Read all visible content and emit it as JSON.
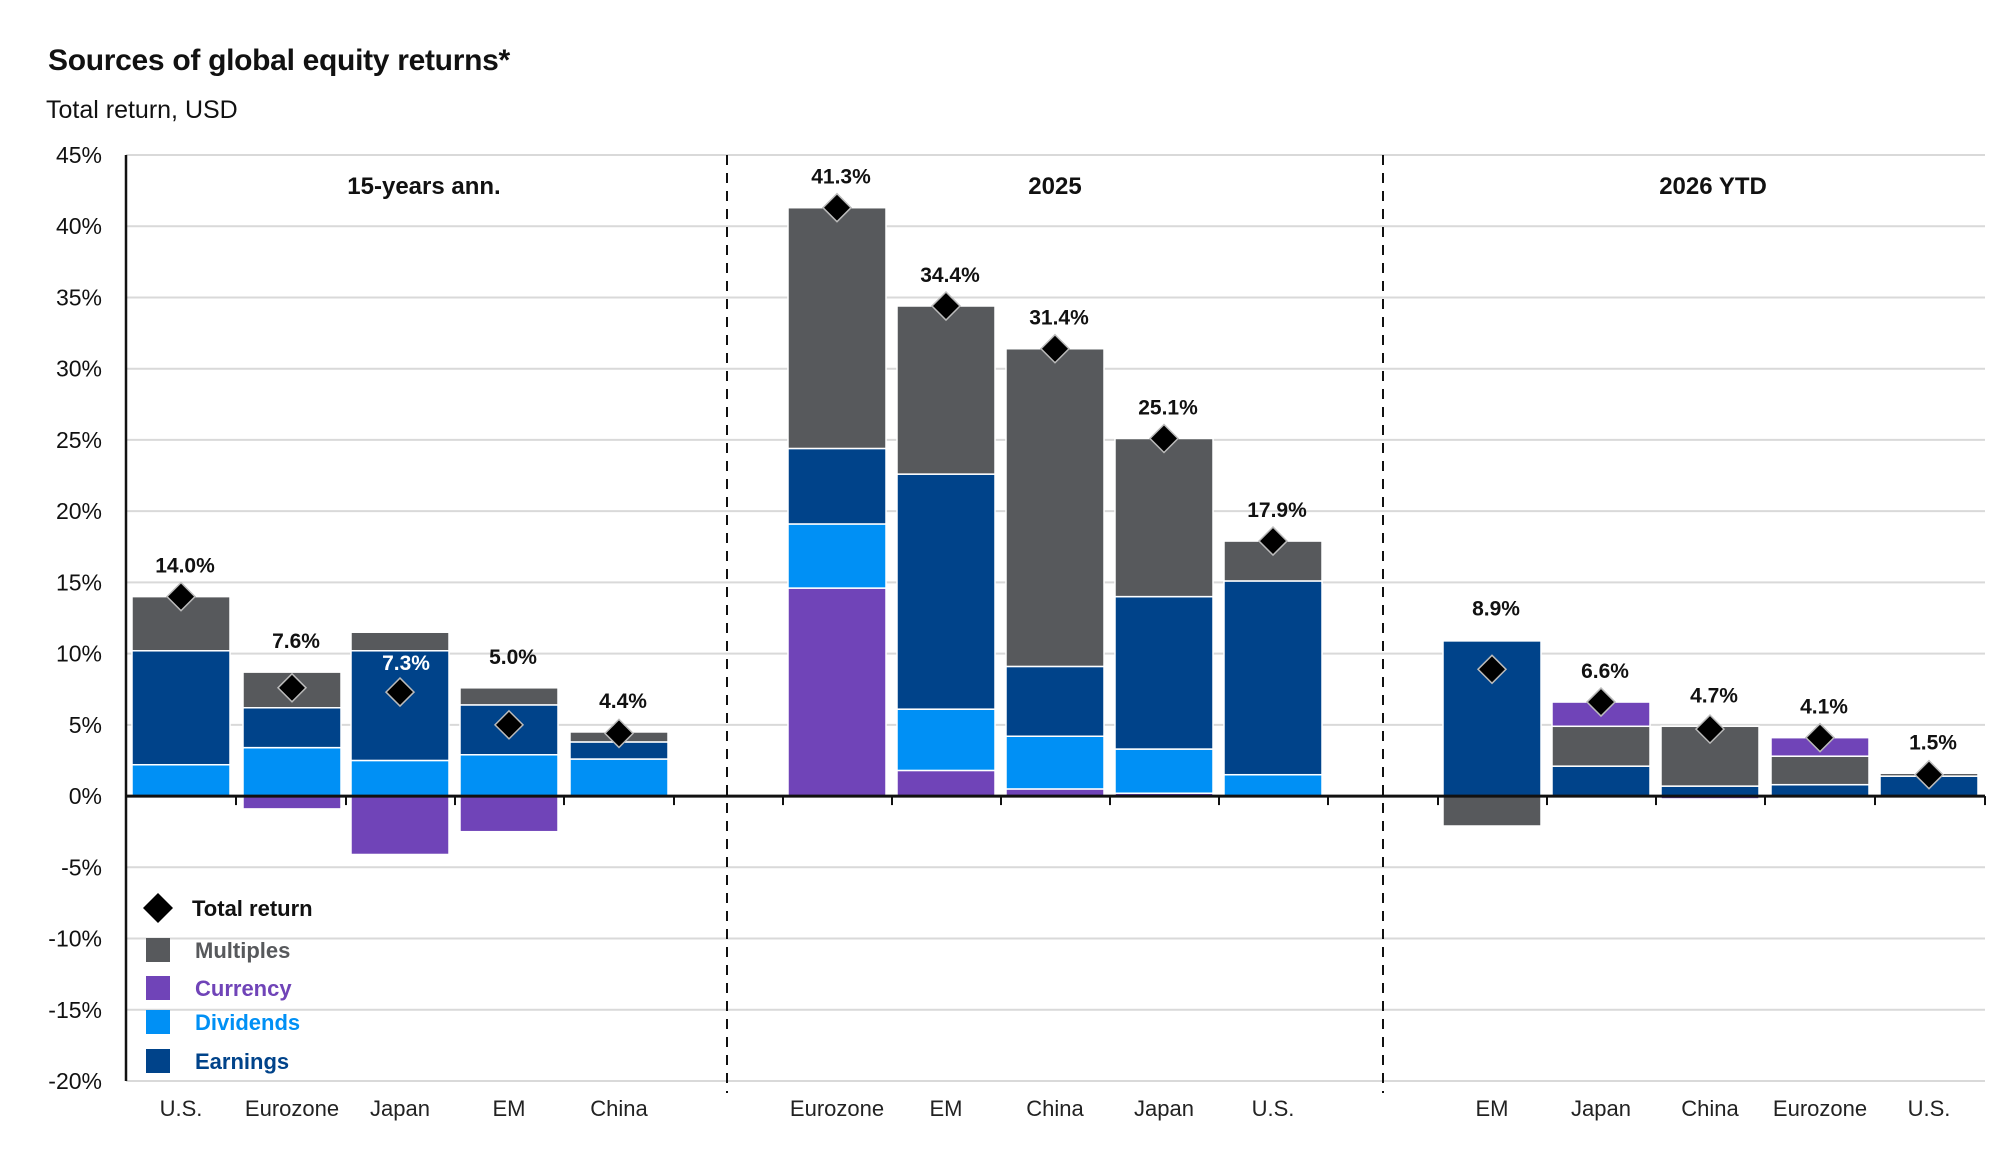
{
  "title": "Sources of global equity returns*",
  "subtitle": "Total return, USD",
  "chart_data": {
    "type": "bar",
    "stacked": true,
    "title": "Sources of global equity returns*",
    "subtitle": "Total return, USD",
    "xlabel": "",
    "ylabel": "",
    "ylim": [
      -20,
      45
    ],
    "y_ticks": [
      45,
      40,
      35,
      30,
      25,
      20,
      15,
      10,
      5,
      0,
      -5,
      -10,
      -15,
      -20
    ],
    "y_tick_labels": [
      "45%",
      "40%",
      "35%",
      "30%",
      "25%",
      "20%",
      "15%",
      "10%",
      "5%",
      "0%",
      "-5%",
      "-10%",
      "-15%",
      "-20%"
    ],
    "grid": true,
    "legend_position": "bottom-left",
    "series_meta": [
      {
        "key": "multiples",
        "name": "Multiples",
        "color": "#57595c"
      },
      {
        "key": "currency",
        "name": "Currency",
        "color": "#7044b8"
      },
      {
        "key": "dividends",
        "name": "Dividends",
        "color": "#0090f5"
      },
      {
        "key": "earnings",
        "name": "Earnings",
        "color": "#00438a"
      }
    ],
    "marker_meta": {
      "name": "Total return",
      "color": "#000000",
      "shape": "diamond"
    },
    "legend": [
      "Total return",
      "Multiples",
      "Currency",
      "Dividends",
      "Earnings"
    ],
    "panels": [
      {
        "title": "15-years ann.",
        "categories": [
          "U.S.",
          "Eurozone",
          "Japan",
          "EM",
          "China"
        ],
        "dividends": [
          2.2,
          3.4,
          2.5,
          2.9,
          2.6
        ],
        "earnings": [
          8.0,
          2.8,
          7.7,
          3.5,
          1.2
        ],
        "multiples": [
          3.8,
          2.5,
          1.3,
          1.2,
          0.7
        ],
        "currency": [
          0.0,
          -0.9,
          -4.1,
          -2.5,
          0.0
        ],
        "total_return": [
          14.0,
          7.6,
          7.3,
          5.0,
          4.4
        ],
        "total_labels": [
          "14.0%",
          "7.6%",
          "7.3%",
          "5.0%",
          "4.4%"
        ]
      },
      {
        "title": "2025",
        "categories": [
          "Eurozone",
          "EM",
          "China",
          "Japan",
          "U.S."
        ],
        "currency": [
          14.6,
          1.8,
          0.5,
          0.2,
          0.0
        ],
        "dividends": [
          4.5,
          4.3,
          3.7,
          3.1,
          1.5
        ],
        "earnings": [
          5.3,
          16.5,
          4.9,
          10.7,
          13.6
        ],
        "multiples": [
          16.9,
          11.8,
          22.3,
          11.1,
          2.8
        ],
        "total_return": [
          41.3,
          34.4,
          31.4,
          25.1,
          17.9
        ],
        "total_labels": [
          "41.3%",
          "34.4%",
          "31.4%",
          "25.1%",
          "17.9%"
        ]
      },
      {
        "title": "2026 YTD",
        "categories": [
          "EM",
          "Japan",
          "China",
          "Eurozone",
          "U.S."
        ],
        "dividends": [
          0.0,
          0.0,
          0.0,
          0.0,
          0.0
        ],
        "earnings": [
          10.9,
          2.1,
          0.7,
          0.8,
          1.4
        ],
        "multiples": [
          -2.1,
          2.8,
          4.2,
          2.0,
          0.2
        ],
        "currency": [
          0.1,
          1.7,
          -0.2,
          1.3,
          0.0
        ],
        "total_return": [
          8.9,
          6.6,
          4.7,
          4.1,
          1.5
        ],
        "total_labels": [
          "8.9%",
          "6.6%",
          "4.7%",
          "4.1%",
          "1.5%"
        ]
      }
    ]
  }
}
